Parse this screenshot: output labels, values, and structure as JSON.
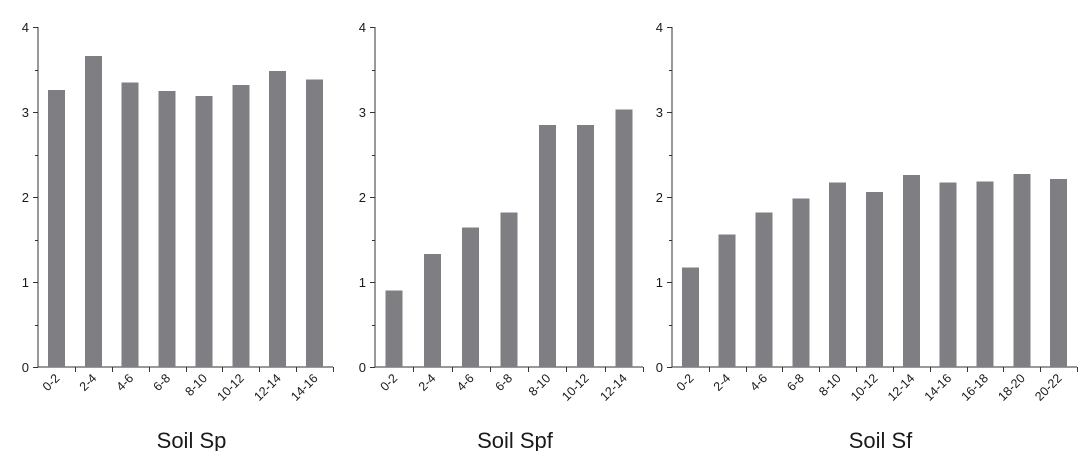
{
  "bar_color": "#7f7f83",
  "axis_color": "#333333",
  "chart_data": [
    {
      "type": "bar",
      "title": "Soil Sp",
      "categories": [
        "0-2",
        "2-4",
        "4-6",
        "6-8",
        "8-10",
        "10-12",
        "12-14",
        "14-16"
      ],
      "values": [
        3.26,
        3.66,
        3.35,
        3.25,
        3.19,
        3.32,
        3.48,
        3.38
      ],
      "ylim": [
        0,
        4
      ],
      "yticks": [
        "0",
        "1",
        "2",
        "3",
        "4"
      ],
      "grid": false
    },
    {
      "type": "bar",
      "title": "Soil Spf",
      "categories": [
        "0-2",
        "2-4",
        "4-6",
        "6-8",
        "8-10",
        "10-12",
        "12-14"
      ],
      "values": [
        0.9,
        1.33,
        1.64,
        1.82,
        2.85,
        2.85,
        3.03
      ],
      "ylim": [
        0,
        4
      ],
      "yticks": [
        "0",
        "1",
        "2",
        "3",
        "4"
      ],
      "grid": false
    },
    {
      "type": "bar",
      "title": "Soil Sf",
      "categories": [
        "0-2",
        "2-4",
        "4-6",
        "6-8",
        "8-10",
        "10-12",
        "12-14",
        "14-16",
        "16-18",
        "18-20",
        "20-22"
      ],
      "values": [
        1.17,
        1.56,
        1.82,
        1.98,
        2.17,
        2.06,
        2.26,
        2.17,
        2.18,
        2.27,
        2.21
      ],
      "ylim": [
        0,
        4
      ],
      "yticks": [
        "0",
        "1",
        "2",
        "3",
        "4"
      ],
      "grid": false
    }
  ]
}
